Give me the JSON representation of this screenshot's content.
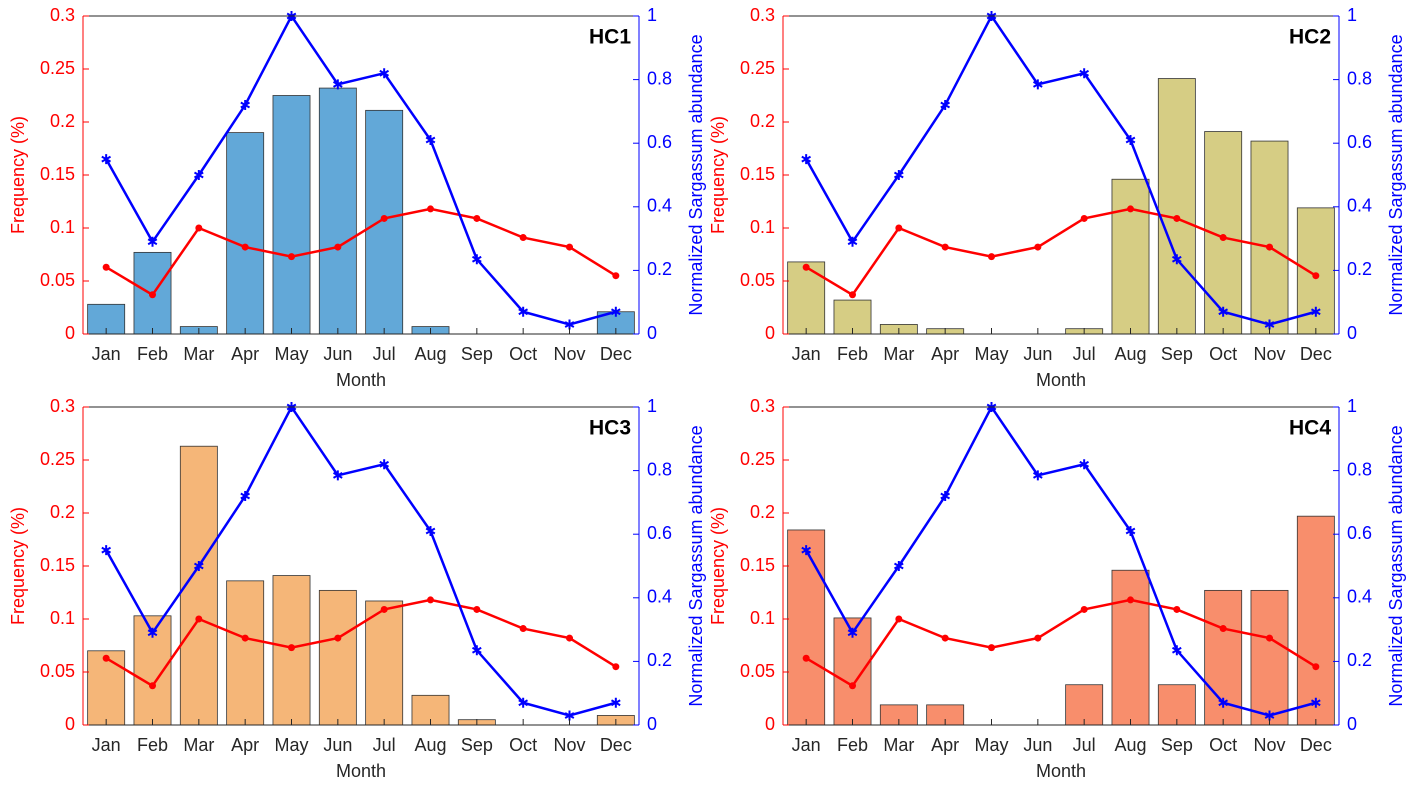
{
  "chart_data": [
    {
      "type": "combo",
      "title": "HC1",
      "xlabel": "Month",
      "ylabel": "Frequency (%)",
      "y2label": "Normalized Sargassum abundance",
      "categories": [
        "Jan",
        "Feb",
        "Mar",
        "Apr",
        "May",
        "Jun",
        "Jul",
        "Aug",
        "Sep",
        "Oct",
        "Nov",
        "Dec"
      ],
      "ylim": [
        0,
        0.3
      ],
      "yticks": [
        0,
        0.05,
        0.1,
        0.15,
        0.2,
        0.25,
        0.3
      ],
      "y2lim": [
        0,
        1
      ],
      "y2ticks": [
        0,
        0.2,
        0.4,
        0.6,
        0.8,
        1
      ],
      "series": [
        {
          "type": "bar",
          "color": "#62a8d8",
          "values": [
            0.028,
            0.077,
            0.007,
            0.19,
            0.225,
            0.232,
            0.211,
            0.007,
            0,
            0,
            0,
            0.021
          ]
        },
        {
          "type": "line",
          "marker": "dot",
          "color": "#ff0000",
          "values": [
            0.063,
            0.037,
            0.1,
            0.082,
            0.073,
            0.082,
            0.109,
            0.118,
            0.109,
            0.091,
            0.082,
            0.055
          ]
        },
        {
          "type": "line",
          "marker": "star",
          "axis": "y2",
          "color": "#0000ff",
          "values": [
            0.55,
            0.29,
            0.5,
            0.72,
            1,
            0.785,
            0.82,
            0.61,
            0.235,
            0.07,
            0.03,
            0.07
          ]
        }
      ]
    },
    {
      "type": "combo",
      "title": "HC2",
      "xlabel": "Month",
      "ylabel": "Frequency (%)",
      "y2label": "Normalized Sargassum abundance",
      "categories": [
        "Jan",
        "Feb",
        "Mar",
        "Apr",
        "May",
        "Jun",
        "Jul",
        "Aug",
        "Sep",
        "Oct",
        "Nov",
        "Dec"
      ],
      "ylim": [
        0,
        0.3
      ],
      "yticks": [
        0,
        0.05,
        0.1,
        0.15,
        0.2,
        0.25,
        0.3
      ],
      "y2lim": [
        0,
        1
      ],
      "y2ticks": [
        0,
        0.2,
        0.4,
        0.6,
        0.8,
        1
      ],
      "series": [
        {
          "type": "bar",
          "color": "#d6cd84",
          "values": [
            0.068,
            0.032,
            0.009,
            0.005,
            0,
            0,
            0.005,
            0.146,
            0.241,
            0.191,
            0.182,
            0.119
          ]
        },
        {
          "type": "line",
          "marker": "dot",
          "color": "#ff0000",
          "values": [
            0.063,
            0.037,
            0.1,
            0.082,
            0.073,
            0.082,
            0.109,
            0.118,
            0.109,
            0.091,
            0.082,
            0.055
          ]
        },
        {
          "type": "line",
          "marker": "star",
          "axis": "y2",
          "color": "#0000ff",
          "values": [
            0.55,
            0.29,
            0.5,
            0.72,
            1,
            0.785,
            0.82,
            0.61,
            0.235,
            0.07,
            0.03,
            0.07
          ]
        }
      ]
    },
    {
      "type": "combo",
      "title": "HC3",
      "xlabel": "Month",
      "ylabel": "Frequency (%)",
      "y2label": "Normalized Sargassum abundance",
      "categories": [
        "Jan",
        "Feb",
        "Mar",
        "Apr",
        "May",
        "Jun",
        "Jul",
        "Aug",
        "Sep",
        "Oct",
        "Nov",
        "Dec"
      ],
      "ylim": [
        0,
        0.3
      ],
      "yticks": [
        0,
        0.05,
        0.1,
        0.15,
        0.2,
        0.25,
        0.3
      ],
      "y2lim": [
        0,
        1
      ],
      "y2ticks": [
        0,
        0.2,
        0.4,
        0.6,
        0.8,
        1
      ],
      "series": [
        {
          "type": "bar",
          "color": "#f5b678",
          "values": [
            0.07,
            0.103,
            0.263,
            0.136,
            0.141,
            0.127,
            0.117,
            0.028,
            0.005,
            0,
            0,
            0.009
          ]
        },
        {
          "type": "line",
          "marker": "dot",
          "color": "#ff0000",
          "values": [
            0.063,
            0.037,
            0.1,
            0.082,
            0.073,
            0.082,
            0.109,
            0.118,
            0.109,
            0.091,
            0.082,
            0.055
          ]
        },
        {
          "type": "line",
          "marker": "star",
          "axis": "y2",
          "color": "#0000ff",
          "values": [
            0.55,
            0.29,
            0.5,
            0.72,
            1,
            0.785,
            0.82,
            0.61,
            0.235,
            0.07,
            0.03,
            0.07
          ]
        }
      ]
    },
    {
      "type": "combo",
      "title": "HC4",
      "xlabel": "Month",
      "ylabel": "Frequency (%)",
      "y2label": "Normalized Sargassum abundance",
      "categories": [
        "Jan",
        "Feb",
        "Mar",
        "Apr",
        "May",
        "Jun",
        "Jul",
        "Aug",
        "Sep",
        "Oct",
        "Nov",
        "Dec"
      ],
      "ylim": [
        0,
        0.3
      ],
      "yticks": [
        0,
        0.05,
        0.1,
        0.15,
        0.2,
        0.25,
        0.3
      ],
      "y2lim": [
        0,
        1
      ],
      "y2ticks": [
        0,
        0.2,
        0.4,
        0.6,
        0.8,
        1
      ],
      "series": [
        {
          "type": "bar",
          "color": "#f88e6c",
          "values": [
            0.184,
            0.101,
            0.019,
            0.019,
            0,
            0,
            0.038,
            0.146,
            0.038,
            0.127,
            0.127,
            0.197
          ]
        },
        {
          "type": "line",
          "marker": "dot",
          "color": "#ff0000",
          "values": [
            0.063,
            0.037,
            0.1,
            0.082,
            0.073,
            0.082,
            0.109,
            0.118,
            0.109,
            0.091,
            0.082,
            0.055
          ]
        },
        {
          "type": "line",
          "marker": "star",
          "axis": "y2",
          "color": "#0000ff",
          "values": [
            0.55,
            0.29,
            0.5,
            0.72,
            1,
            0.785,
            0.82,
            0.61,
            0.235,
            0.07,
            0.03,
            0.07
          ]
        }
      ]
    }
  ]
}
